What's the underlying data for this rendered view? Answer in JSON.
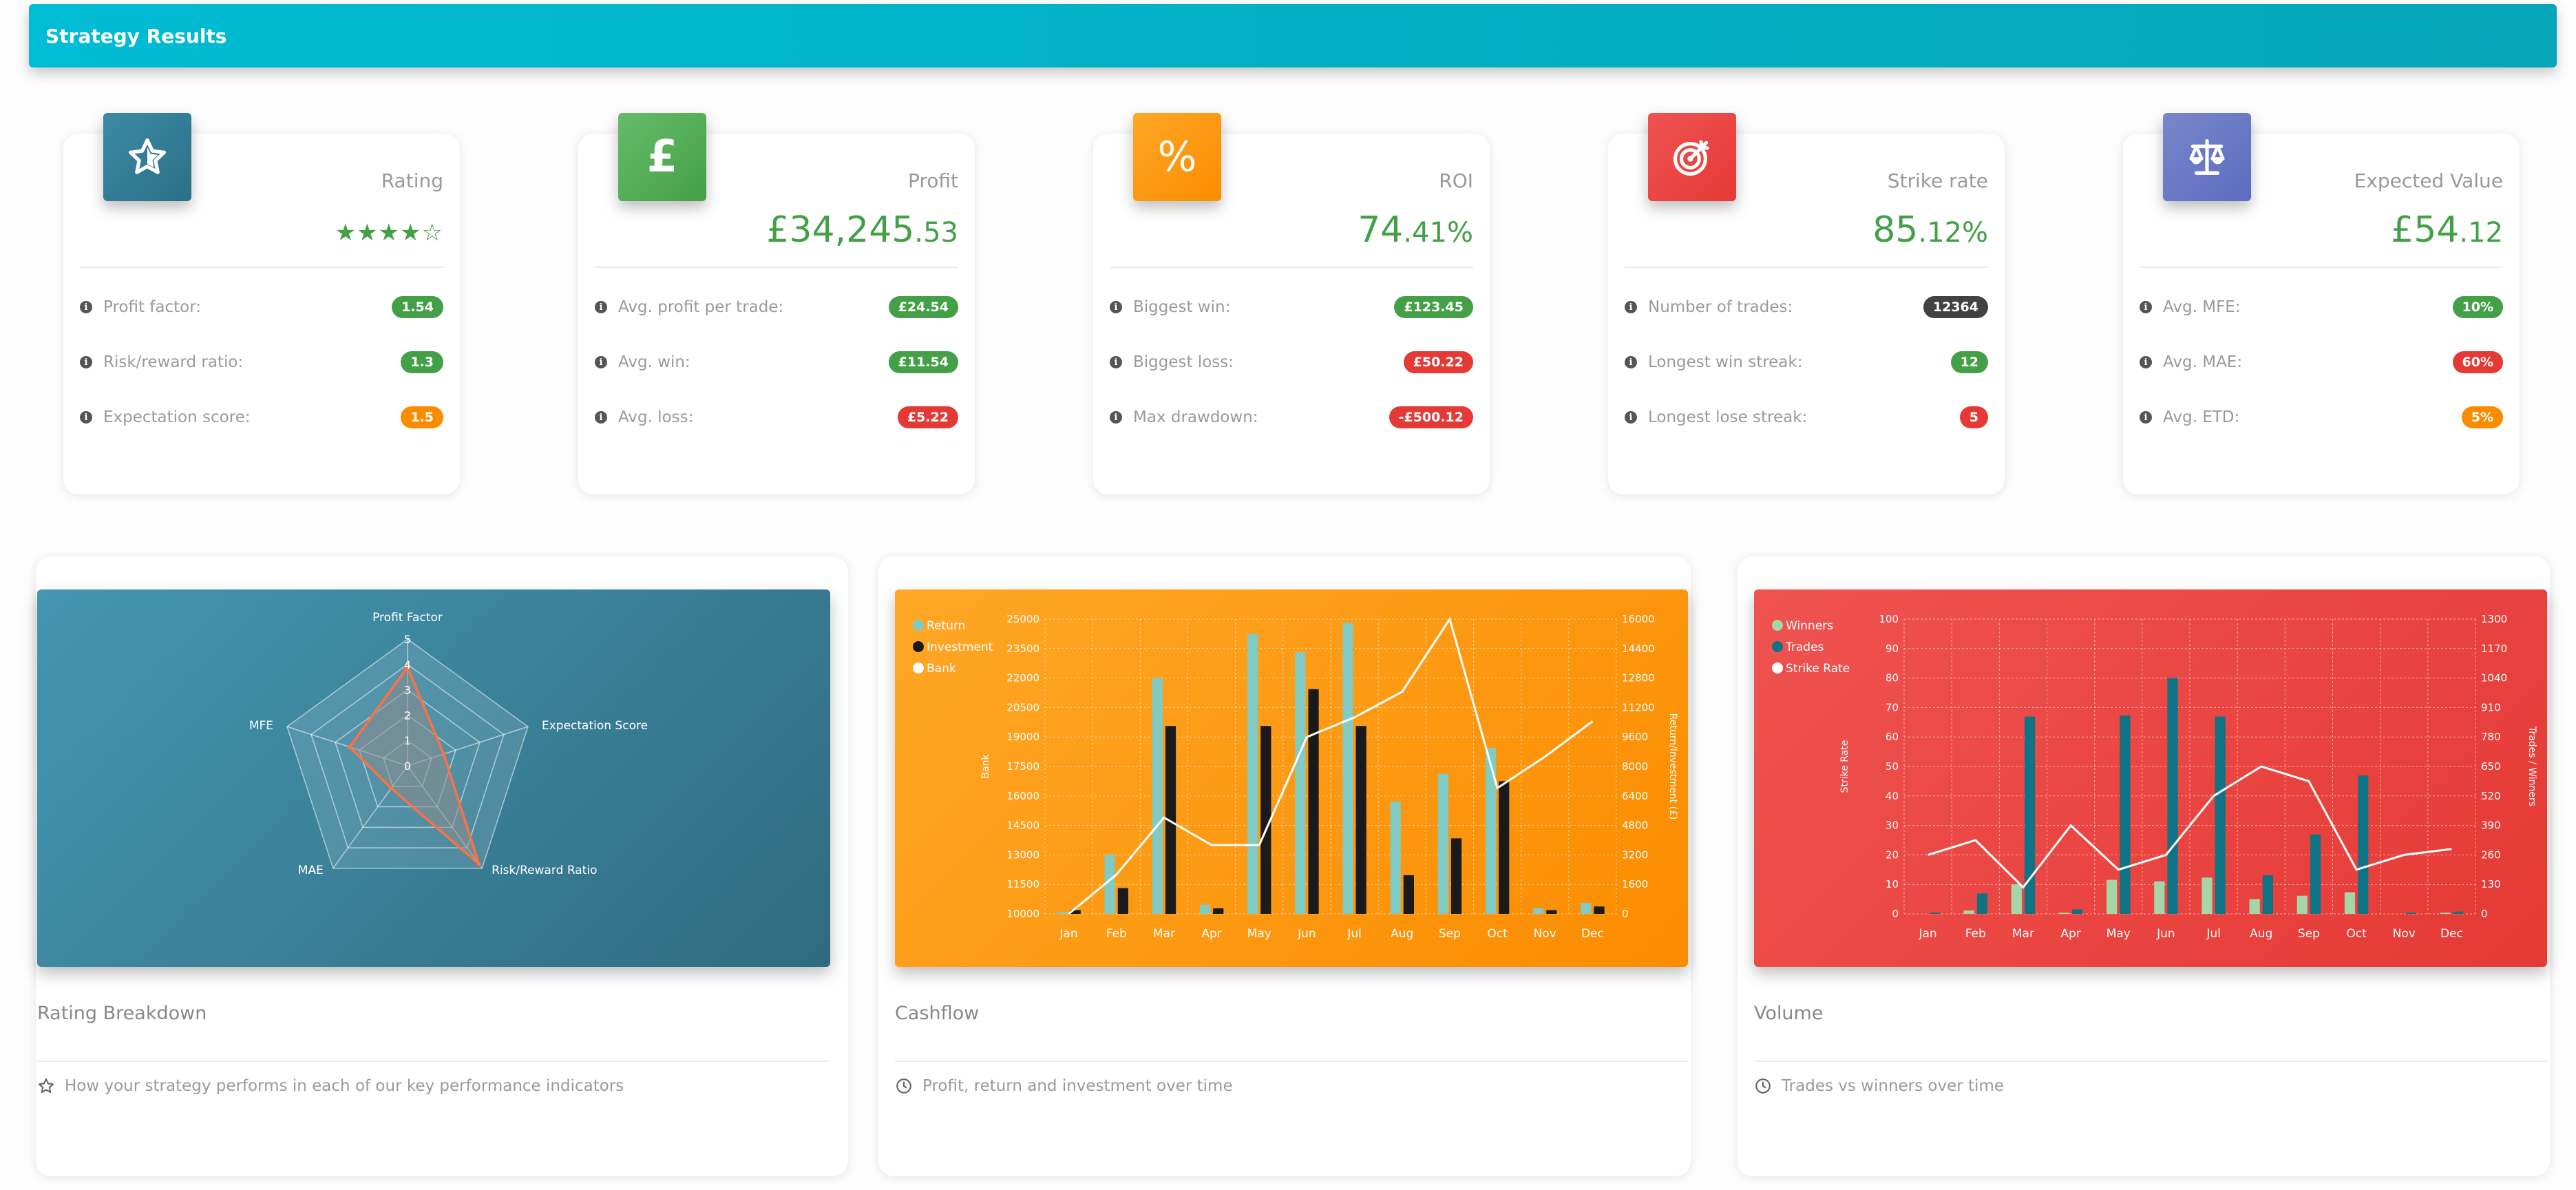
{
  "header": {
    "title": "Strategy Results"
  },
  "colors": {
    "green": "#43a047",
    "red": "#e53935",
    "orange": "#fb8c00",
    "dark": "#424242"
  },
  "cards": [
    {
      "label": "Rating",
      "stars": 4,
      "stars_max": 5,
      "icon": "star-icon",
      "rows": [
        {
          "label": "Profit factor:",
          "value": "1.54",
          "color": "green"
        },
        {
          "label": "Risk/reward ratio:",
          "value": "1.3",
          "color": "green"
        },
        {
          "label": "Expectation score:",
          "value": "1.5",
          "color": "orange"
        }
      ]
    },
    {
      "label": "Profit",
      "value_main": "£34,245",
      "value_dec": ".53",
      "icon": "pound-icon",
      "rows": [
        {
          "label": "Avg. profit per trade:",
          "value": "£24.54",
          "color": "green"
        },
        {
          "label": "Avg. win:",
          "value": "£11.54",
          "color": "green"
        },
        {
          "label": "Avg. loss:",
          "value": "£5.22",
          "color": "red"
        }
      ]
    },
    {
      "label": "ROI",
      "value_main": "74",
      "value_dec": ".41%",
      "icon": "percent-icon",
      "rows": [
        {
          "label": "Biggest win:",
          "value": "£123.45",
          "color": "green"
        },
        {
          "label": "Biggest loss:",
          "value": "£50.22",
          "color": "red"
        },
        {
          "label": "Max drawdown:",
          "value": "-£500.12",
          "color": "red"
        }
      ]
    },
    {
      "label": "Strike rate",
      "value_main": "85",
      "value_dec": ".12%",
      "icon": "target-icon",
      "rows": [
        {
          "label": "Number of trades:",
          "value": "12364",
          "color": "dark"
        },
        {
          "label": "Longest win streak:",
          "value": "12",
          "color": "green"
        },
        {
          "label": "Longest lose streak:",
          "value": "5",
          "color": "red"
        }
      ]
    },
    {
      "label": "Expected Value",
      "value_main": "£54",
      "value_dec": ".12",
      "icon": "scales-icon",
      "rows": [
        {
          "label": "Avg. MFE:",
          "value": "10%",
          "color": "green"
        },
        {
          "label": "Avg. MAE:",
          "value": "60%",
          "color": "red"
        },
        {
          "label": "Avg. ETD:",
          "value": "5%",
          "color": "orange"
        }
      ]
    }
  ],
  "panels": [
    {
      "title": "Rating Breakdown",
      "foot": "How your strategy performs in each of our key performance indicators",
      "foot_icon": "star-outline-icon"
    },
    {
      "title": "Cashflow",
      "foot": "Profit, return and investment over time",
      "foot_icon": "clock-icon"
    },
    {
      "title": "Volume",
      "foot": "Trades vs winners over time",
      "foot_icon": "clock-icon"
    }
  ],
  "chart_data": [
    {
      "type": "radar",
      "categories": [
        "Profit Factor",
        "Expectation Score",
        "Risk/Reward Ratio",
        "MAE",
        "MFE"
      ],
      "values": [
        3.9,
        1.5,
        4.8,
        1.1,
        2.4
      ],
      "rlim": [
        0,
        5
      ],
      "ticks": [
        "0",
        "1",
        "2",
        "3",
        "4",
        "5"
      ],
      "grid": true
    },
    {
      "type": "bar",
      "categories": [
        "Jan",
        "Feb",
        "Mar",
        "Apr",
        "May",
        "Jun",
        "Jul",
        "Aug",
        "Sep",
        "Oct",
        "Nov",
        "Dec"
      ],
      "series": [
        {
          "name": "Return",
          "axis": "right",
          "values": [
            100,
            3200,
            12800,
            500,
            15200,
            14200,
            15800,
            6100,
            7600,
            9000,
            300,
            600
          ]
        },
        {
          "name": "Investment",
          "axis": "right",
          "values": [
            200,
            1400,
            10200,
            300,
            10200,
            12200,
            10200,
            2100,
            4100,
            7200,
            200,
            400
          ]
        },
        {
          "name": "Bank",
          "type": "line",
          "axis": "left",
          "values": [
            10000,
            12000,
            14900,
            13500,
            13500,
            19000,
            20000,
            21300,
            25000,
            16400,
            18000,
            19800
          ]
        }
      ],
      "ylabel": "Bank",
      "y2label": "Return/Investment (£)",
      "ylim": [
        10000,
        25000
      ],
      "y2lim": [
        0,
        16000
      ],
      "yticks": [
        "10000",
        "11500",
        "13000",
        "14500",
        "16000",
        "17500",
        "19000",
        "20500",
        "22000",
        "23500",
        "25000"
      ],
      "y2ticks": [
        "0",
        "1600",
        "3200",
        "4800",
        "6400",
        "8000",
        "9600",
        "11200",
        "12800",
        "14400",
        "16000"
      ],
      "legend": "top-left",
      "grid": true
    },
    {
      "type": "bar",
      "categories": [
        "Jan",
        "Feb",
        "Mar",
        "Apr",
        "May",
        "Jun",
        "Jul",
        "Aug",
        "Sep",
        "Oct",
        "Nov",
        "Dec"
      ],
      "series": [
        {
          "name": "Winners",
          "axis": "right",
          "values": [
            0,
            15,
            130,
            5,
            150,
            143,
            160,
            65,
            80,
            95,
            0,
            5
          ]
        },
        {
          "name": "Trades",
          "axis": "right",
          "values": [
            5,
            90,
            870,
            20,
            875,
            1040,
            870,
            170,
            350,
            610,
            5,
            10
          ]
        },
        {
          "name": "Strike Rate",
          "type": "line",
          "axis": "left",
          "values": [
            20,
            25,
            9,
            30,
            15,
            20,
            40,
            50,
            45,
            15,
            20,
            22
          ]
        }
      ],
      "ylabel": "Strike Rate",
      "y2label": "Trades / Winners",
      "ylim": [
        0,
        100
      ],
      "y2lim": [
        0,
        1300
      ],
      "yticks": [
        "0",
        "10",
        "20",
        "30",
        "40",
        "50",
        "60",
        "70",
        "80",
        "90",
        "100"
      ],
      "y2ticks": [
        "0",
        "130",
        "260",
        "390",
        "520",
        "650",
        "780",
        "910",
        "1040",
        "1170",
        "1300"
      ],
      "legend": "top-left",
      "grid": true
    }
  ]
}
